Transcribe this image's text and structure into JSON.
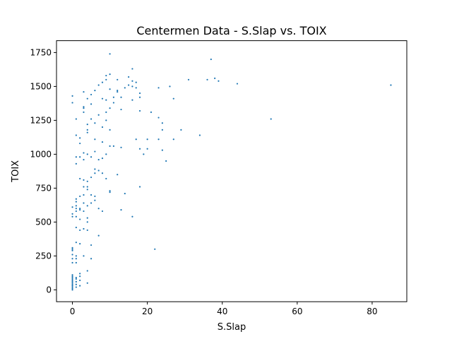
{
  "chart_data": {
    "type": "scatter",
    "title": "Centermen Data - S.Slap vs. TOIX",
    "xlabel": "S.Slap",
    "ylabel": "TOIX",
    "xlim": [
      -4.25,
      89.25
    ],
    "ylim": [
      -87.5,
      1837.5
    ],
    "xticks": [
      0,
      20,
      40,
      60,
      80
    ],
    "yticks": [
      0,
      250,
      500,
      750,
      1000,
      1250,
      1500,
      1750
    ],
    "grid": false,
    "legend": "none",
    "point_color": "#1f77b4",
    "points": [
      [
        0,
        0
      ],
      [
        0,
        10
      ],
      [
        0,
        20
      ],
      [
        0,
        30
      ],
      [
        0,
        40
      ],
      [
        0,
        50
      ],
      [
        0,
        60
      ],
      [
        0,
        70
      ],
      [
        0,
        80
      ],
      [
        0,
        90
      ],
      [
        0,
        100
      ],
      [
        0,
        110
      ],
      [
        0,
        200
      ],
      [
        0,
        230
      ],
      [
        0,
        260
      ],
      [
        0,
        290
      ],
      [
        0,
        300
      ],
      [
        0,
        310
      ],
      [
        0,
        540
      ],
      [
        0,
        560
      ],
      [
        0,
        610
      ],
      [
        0,
        1380
      ],
      [
        0,
        1430
      ],
      [
        1,
        20
      ],
      [
        1,
        40
      ],
      [
        1,
        60
      ],
      [
        1,
        80
      ],
      [
        1,
        90
      ],
      [
        1,
        200
      ],
      [
        1,
        230
      ],
      [
        1,
        250
      ],
      [
        1,
        350
      ],
      [
        1,
        460
      ],
      [
        1,
        540
      ],
      [
        1,
        580
      ],
      [
        1,
        600
      ],
      [
        1,
        620
      ],
      [
        1,
        650
      ],
      [
        1,
        670
      ],
      [
        1,
        930
      ],
      [
        1,
        980
      ],
      [
        1,
        1140
      ],
      [
        1,
        1260
      ],
      [
        2,
        30
      ],
      [
        2,
        70
      ],
      [
        2,
        100
      ],
      [
        2,
        120
      ],
      [
        2,
        340
      ],
      [
        2,
        440
      ],
      [
        2,
        520
      ],
      [
        2,
        590
      ],
      [
        2,
        600
      ],
      [
        2,
        690
      ],
      [
        2,
        820
      ],
      [
        2,
        980
      ],
      [
        2,
        1080
      ],
      [
        2,
        1120
      ],
      [
        3,
        250
      ],
      [
        3,
        450
      ],
      [
        3,
        580
      ],
      [
        3,
        640
      ],
      [
        3,
        700
      ],
      [
        3,
        760
      ],
      [
        3,
        810
      ],
      [
        3,
        960
      ],
      [
        3,
        1010
      ],
      [
        3,
        1310
      ],
      [
        3,
        1340
      ],
      [
        3,
        1350
      ],
      [
        3,
        1460
      ],
      [
        4,
        50
      ],
      [
        4,
        140
      ],
      [
        4,
        440
      ],
      [
        4,
        500
      ],
      [
        4,
        530
      ],
      [
        4,
        620
      ],
      [
        4,
        740
      ],
      [
        4,
        760
      ],
      [
        4,
        800
      ],
      [
        4,
        1000
      ],
      [
        4,
        1160
      ],
      [
        4,
        1180
      ],
      [
        4,
        1220
      ],
      [
        4,
        1410
      ],
      [
        5,
        230
      ],
      [
        5,
        330
      ],
      [
        5,
        640
      ],
      [
        5,
        700
      ],
      [
        5,
        830
      ],
      [
        5,
        980
      ],
      [
        5,
        1260
      ],
      [
        5,
        1370
      ],
      [
        5,
        1440
      ],
      [
        6,
        660
      ],
      [
        6,
        690
      ],
      [
        6,
        860
      ],
      [
        6,
        890
      ],
      [
        6,
        1020
      ],
      [
        6,
        1110
      ],
      [
        6,
        1230
      ],
      [
        6,
        1470
      ],
      [
        7,
        400
      ],
      [
        7,
        600
      ],
      [
        7,
        880
      ],
      [
        7,
        960
      ],
      [
        7,
        1290
      ],
      [
        7,
        1510
      ],
      [
        8,
        580
      ],
      [
        8,
        860
      ],
      [
        8,
        970
      ],
      [
        8,
        1090
      ],
      [
        8,
        1200
      ],
      [
        8,
        1410
      ],
      [
        8,
        1530
      ],
      [
        9,
        820
      ],
      [
        9,
        1000
      ],
      [
        9,
        1250
      ],
      [
        9,
        1310
      ],
      [
        9,
        1400
      ],
      [
        9,
        1550
      ],
      [
        9,
        1580
      ],
      [
        10,
        720
      ],
      [
        10,
        730
      ],
      [
        10,
        1060
      ],
      [
        10,
        1180
      ],
      [
        10,
        1340
      ],
      [
        10,
        1480
      ],
      [
        10,
        1590
      ],
      [
        10,
        1740
      ],
      [
        11,
        1060
      ],
      [
        11,
        1380
      ],
      [
        11,
        1420
      ],
      [
        12,
        850
      ],
      [
        12,
        1460
      ],
      [
        12,
        1470
      ],
      [
        12,
        1550
      ],
      [
        13,
        590
      ],
      [
        13,
        1050
      ],
      [
        13,
        1330
      ],
      [
        13,
        1420
      ],
      [
        14,
        710
      ],
      [
        14,
        1490
      ],
      [
        15,
        1510
      ],
      [
        15,
        1570
      ],
      [
        16,
        540
      ],
      [
        16,
        1400
      ],
      [
        16,
        1500
      ],
      [
        16,
        1540
      ],
      [
        16,
        1630
      ],
      [
        17,
        1110
      ],
      [
        17,
        1490
      ],
      [
        17,
        1530
      ],
      [
        18,
        760
      ],
      [
        18,
        1040
      ],
      [
        18,
        1320
      ],
      [
        18,
        1420
      ],
      [
        18,
        1450
      ],
      [
        19,
        1000
      ],
      [
        20,
        1040
      ],
      [
        20,
        1110
      ],
      [
        21,
        1310
      ],
      [
        22,
        300
      ],
      [
        23,
        1110
      ],
      [
        23,
        1270
      ],
      [
        23,
        1490
      ],
      [
        24,
        1030
      ],
      [
        24,
        1180
      ],
      [
        24,
        1230
      ],
      [
        25,
        950
      ],
      [
        26,
        1500
      ],
      [
        27,
        1110
      ],
      [
        27,
        1410
      ],
      [
        29,
        1180
      ],
      [
        31,
        1550
      ],
      [
        34,
        1140
      ],
      [
        36,
        1550
      ],
      [
        37,
        1700
      ],
      [
        38,
        1560
      ],
      [
        39,
        1540
      ],
      [
        44,
        1520
      ],
      [
        53,
        1260
      ],
      [
        85,
        1510
      ]
    ]
  }
}
